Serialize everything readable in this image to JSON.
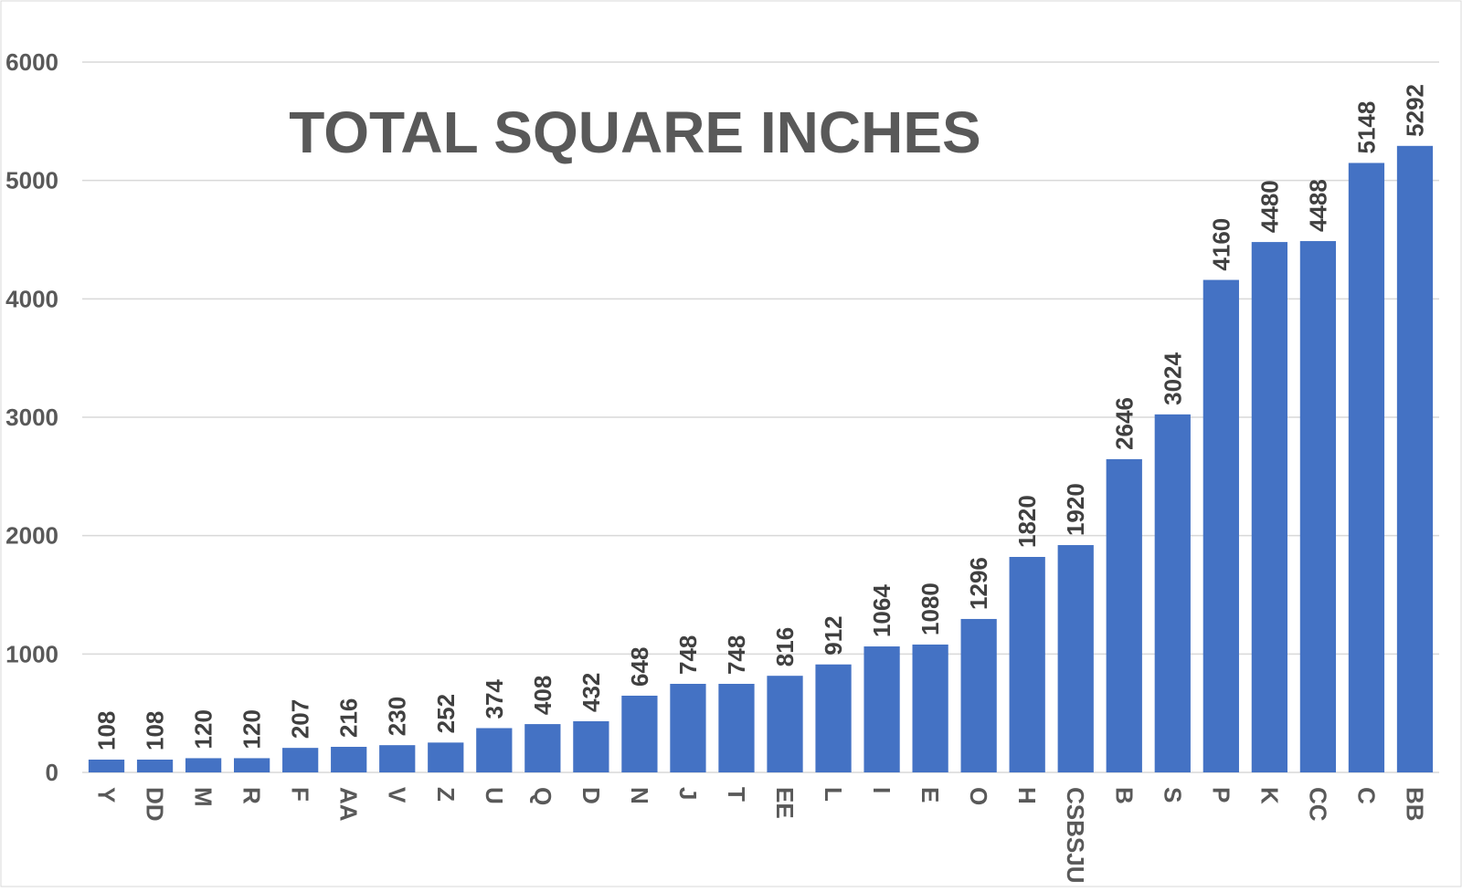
{
  "chart_data": {
    "type": "bar",
    "title": "TOTAL SQUARE INCHES",
    "categories": [
      "Y",
      "DD",
      "M",
      "R",
      "F",
      "AA",
      "V",
      "Z",
      "U",
      "Q",
      "D",
      "N",
      "J",
      "T",
      "EE",
      "L",
      "I",
      "E",
      "O",
      "H",
      "CSBSJU",
      "B",
      "S",
      "P",
      "K",
      "CC",
      "C",
      "BB"
    ],
    "values": [
      108,
      108,
      120,
      120,
      207,
      216,
      230,
      252,
      374,
      408,
      432,
      648,
      748,
      748,
      816,
      912,
      1064,
      1080,
      1296,
      1820,
      1920,
      2646,
      3024,
      4160,
      4480,
      4488,
      5148,
      5292
    ],
    "ylim": [
      0,
      6000
    ],
    "yticks": [
      0,
      1000,
      2000,
      3000,
      4000,
      5000,
      6000
    ],
    "grid": true,
    "bar_color": "#4472c4",
    "data_labels": true
  }
}
